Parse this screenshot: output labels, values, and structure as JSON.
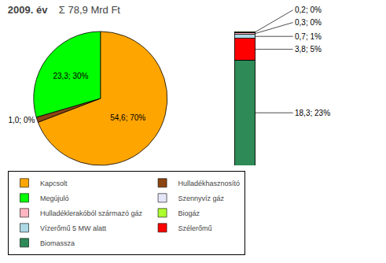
{
  "chart_data": [
    {
      "type": "pie",
      "title": "2009. év",
      "subtitle": "Σ 78,9 Mrd Ft",
      "values": [
        54.6,
        1.0,
        23.3
      ],
      "value_labels": [
        "54,6; 70%",
        "1,0; 0%",
        "23,3; 30%"
      ],
      "colors": [
        "#FFA500",
        "#8B4513",
        "#00FF00"
      ],
      "data_labels": true,
      "legend_items": [
        {
          "name": "Kapcsolt",
          "color": "#FFA500"
        },
        {
          "name": "Hulladékhasznosító",
          "color": "#8B4513"
        },
        {
          "name": "Megújuló",
          "color": "#00FF00"
        },
        {
          "name": "Szennyvíz gáz",
          "color": "#E6E6FA"
        },
        {
          "name": "Hulladéklerakóból származó gáz",
          "color": "#FFB6C1"
        },
        {
          "name": "Biogáz",
          "color": "#ADFF2F"
        },
        {
          "name": "Vízerőmű 5 MW alatt",
          "color": "#ADD8E6"
        },
        {
          "name": "Szélerőmű",
          "color": "#FF0000"
        },
        {
          "name": "Biomassza",
          "color": "#2E8B57"
        }
      ]
    },
    {
      "type": "bar",
      "stacked": true,
      "tick_labels": false,
      "data_labels": true,
      "ylim": [
        0,
        23.3
      ],
      "series": [
        {
          "name": "Biomassza",
          "color": "#2E8B57",
          "values": [
            18.3
          ],
          "value_labels": [
            "18,3; 23%"
          ]
        },
        {
          "name": "Szélerőmű",
          "color": "#FF0000",
          "values": [
            3.8
          ],
          "value_labels": [
            "3,8; 5%"
          ]
        },
        {
          "name": "Vízerőmű 5 MW alatt",
          "color": "#ADD8E6",
          "values": [
            0.7
          ],
          "value_labels": [
            "0,7; 1%"
          ]
        },
        {
          "name": "Hulladéklerakóból származó gáz",
          "color": "#FFB6C1",
          "values": [
            0.3
          ],
          "value_labels": [
            "0,3; 0%"
          ]
        },
        {
          "name": "Biogáz",
          "color": "#ADFF2F",
          "values": [
            0.2
          ],
          "value_labels": [
            "0,2; 0%"
          ]
        }
      ]
    }
  ]
}
